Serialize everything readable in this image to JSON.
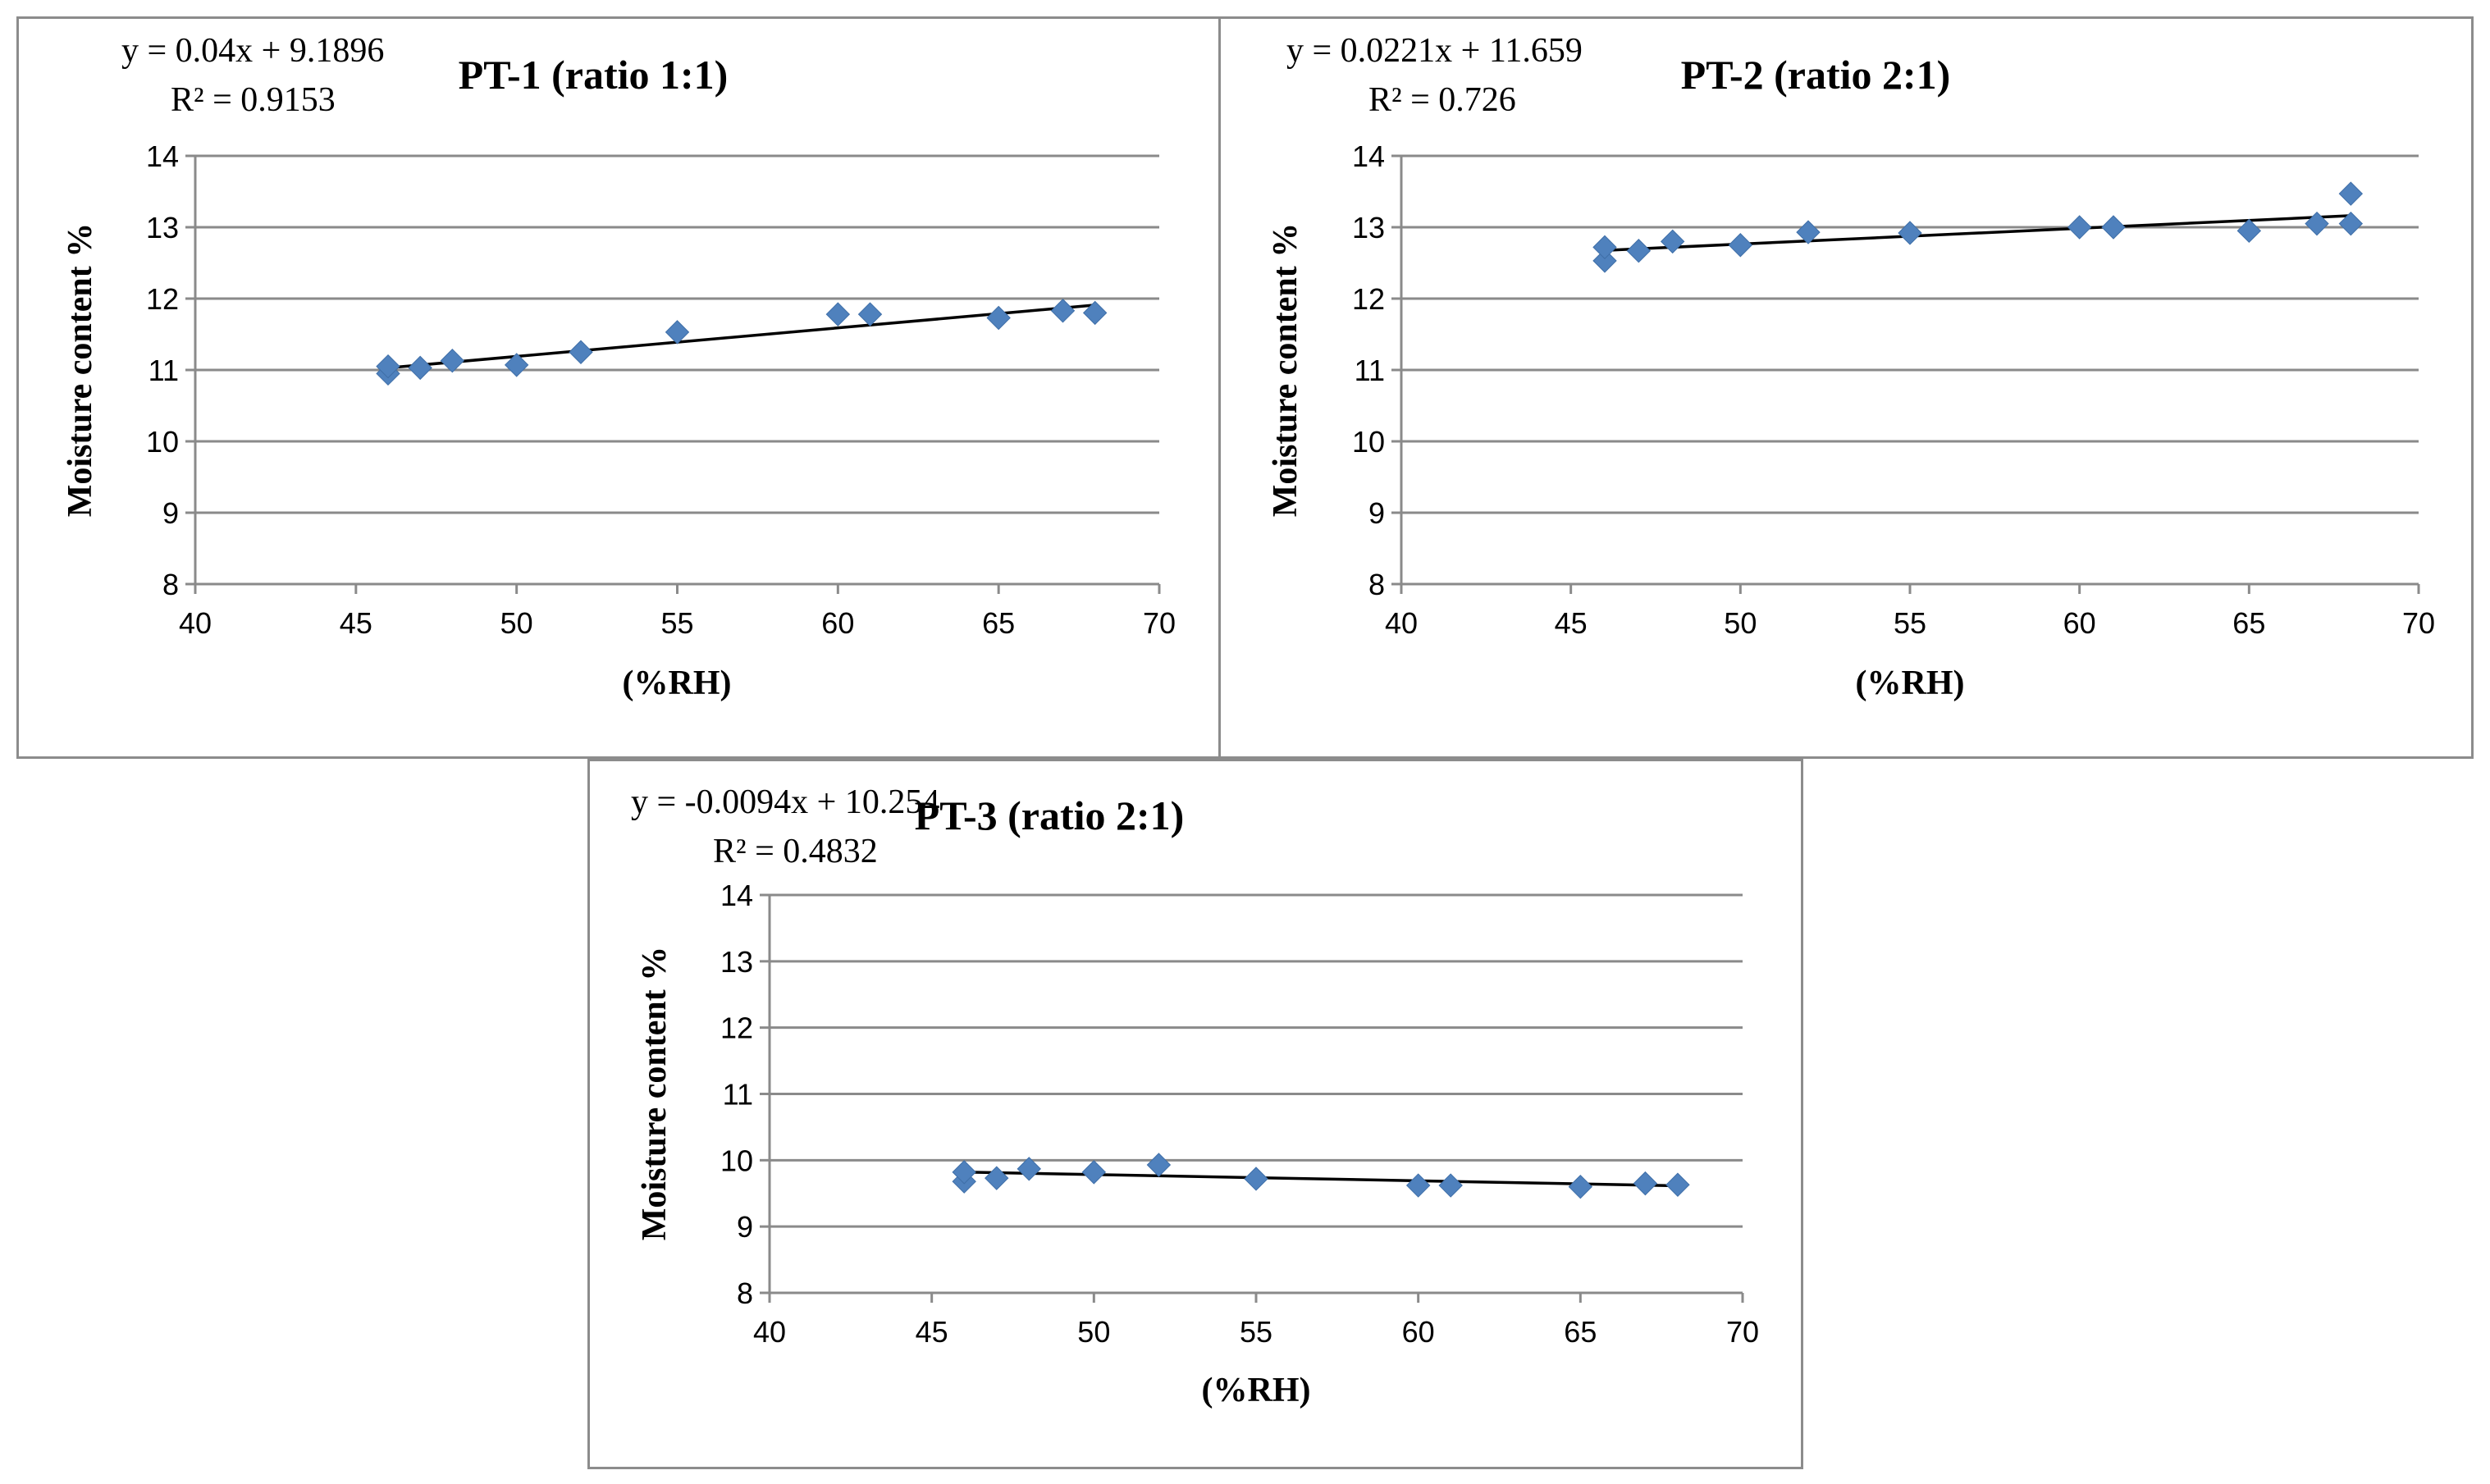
{
  "colors": {
    "marker": "#4f81bd",
    "trendline": "#000000",
    "grid": "#8a8a8a",
    "border": "#8c8c8c"
  },
  "chart_data": [
    {
      "type": "scatter",
      "title": "PT-1 (ratio 1:1)",
      "equation": "y = 0.04x + 9.1896",
      "r2": "R² = 0.9153",
      "xlabel": "(%RH)",
      "ylabel": "Moisture content %",
      "xlim": [
        40,
        70
      ],
      "ylim": [
        8,
        14
      ],
      "xticks": [
        "40",
        "45",
        "50",
        "55",
        "60",
        "65",
        "70"
      ],
      "yticks": [
        "8",
        "9",
        "10",
        "11",
        "12",
        "13",
        "14"
      ],
      "trendline": {
        "slope": 0.04,
        "intercept": 9.1896,
        "x_range": [
          46,
          68
        ]
      },
      "points": [
        [
          46,
          10.95
        ],
        [
          46,
          11.05
        ],
        [
          47,
          11.03
        ],
        [
          48,
          11.13
        ],
        [
          50,
          11.07
        ],
        [
          52,
          11.25
        ],
        [
          55,
          11.53
        ],
        [
          60,
          11.78
        ],
        [
          61,
          11.78
        ],
        [
          65,
          11.73
        ],
        [
          67,
          11.83
        ],
        [
          68,
          11.8
        ]
      ]
    },
    {
      "type": "scatter",
      "title": "PT-2 (ratio 2:1)",
      "equation": "y = 0.0221x + 11.659",
      "r2": "R² = 0.726",
      "xlabel": "(%RH)",
      "ylabel": "Moisture content %",
      "xlim": [
        40,
        70
      ],
      "ylim": [
        8,
        14
      ],
      "xticks": [
        "40",
        "45",
        "50",
        "55",
        "60",
        "65",
        "70"
      ],
      "yticks": [
        "8",
        "9",
        "10",
        "11",
        "12",
        "13",
        "14"
      ],
      "trendline": {
        "slope": 0.0221,
        "intercept": 11.659,
        "x_range": [
          46,
          68
        ]
      },
      "points": [
        [
          46,
          12.53
        ],
        [
          46,
          12.72
        ],
        [
          47,
          12.67
        ],
        [
          48,
          12.8
        ],
        [
          50,
          12.75
        ],
        [
          52,
          12.93
        ],
        [
          55,
          12.92
        ],
        [
          60,
          13.0
        ],
        [
          61,
          13.0
        ],
        [
          65,
          12.95
        ],
        [
          67,
          13.05
        ],
        [
          68,
          13.05
        ],
        [
          68,
          13.47
        ]
      ]
    },
    {
      "type": "scatter",
      "title": "PT-3 (ratio 2:1)",
      "equation": "y = -0.0094x + 10.254",
      "r2": "R² = 0.4832",
      "xlabel": "(%RH)",
      "ylabel": "Moisture content %",
      "xlim": [
        40,
        70
      ],
      "ylim": [
        8,
        14
      ],
      "xticks": [
        "40",
        "45",
        "50",
        "55",
        "60",
        "65",
        "70"
      ],
      "yticks": [
        "8",
        "9",
        "10",
        "11",
        "12",
        "13",
        "14"
      ],
      "trendline": {
        "slope": -0.0094,
        "intercept": 10.254,
        "x_range": [
          46,
          68
        ]
      },
      "points": [
        [
          46,
          9.68
        ],
        [
          46,
          9.82
        ],
        [
          47,
          9.73
        ],
        [
          48,
          9.87
        ],
        [
          50,
          9.82
        ],
        [
          52,
          9.93
        ],
        [
          55,
          9.72
        ],
        [
          60,
          9.62
        ],
        [
          61,
          9.62
        ],
        [
          65,
          9.6
        ],
        [
          67,
          9.65
        ],
        [
          68,
          9.63
        ]
      ]
    }
  ]
}
